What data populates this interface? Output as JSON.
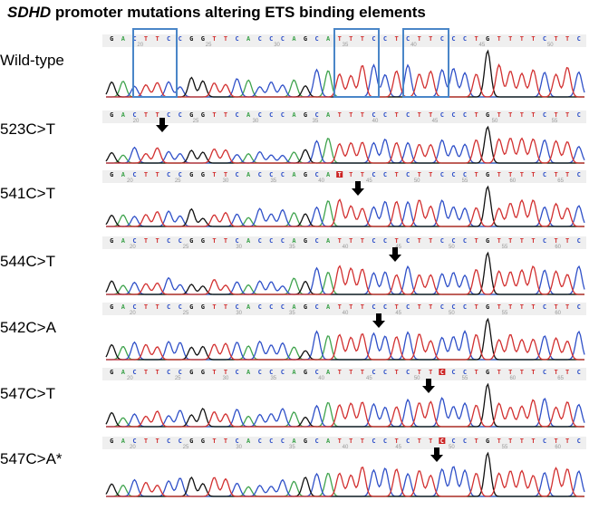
{
  "title": {
    "gene": "SDHD",
    "rest": " promoter mutations altering ETS binding elements"
  },
  "wildtype_sequence": "GACTTCCGGTTCACCCAGCATTTCCTCTTCCCTGTTTTCTTC",
  "base_colors": {
    "A": "#3fa34d",
    "C": "#2f50c8",
    "G": "#111111",
    "T": "#d23030"
  },
  "highlight_color": "#4a86c8",
  "mutation_marker_color": "#cc2222",
  "arrow_icon": "down-arrow-icon",
  "tracks": [
    {
      "label": "Wild-type",
      "positions": [
        "20",
        "25",
        "30",
        "35",
        "40",
        "45",
        "50"
      ]
    },
    {
      "label": "523C>T",
      "positions": [
        "20",
        "25",
        "30",
        "35",
        "40",
        "45",
        "50",
        "55"
      ]
    },
    {
      "label": "541C>T",
      "positions": [
        "20",
        "25",
        "30",
        "35",
        "40",
        "45",
        "50",
        "55",
        "60",
        "65"
      ]
    },
    {
      "label": "544C>T",
      "positions": [
        "20",
        "25",
        "30",
        "35",
        "40",
        "45",
        "50",
        "55",
        "60"
      ]
    },
    {
      "label": "542C>A",
      "positions": [
        "20",
        "25",
        "30",
        "35",
        "40",
        "45",
        "50",
        "55",
        "60"
      ]
    },
    {
      "label": "547C>T",
      "positions": [
        "20",
        "25",
        "30",
        "35",
        "40",
        "45",
        "50",
        "55",
        "60",
        "65"
      ]
    },
    {
      "label": "547C>A*",
      "positions": [
        "20",
        "25",
        "30",
        "35",
        "40",
        "45",
        "50",
        "55",
        "60"
      ]
    }
  ]
}
